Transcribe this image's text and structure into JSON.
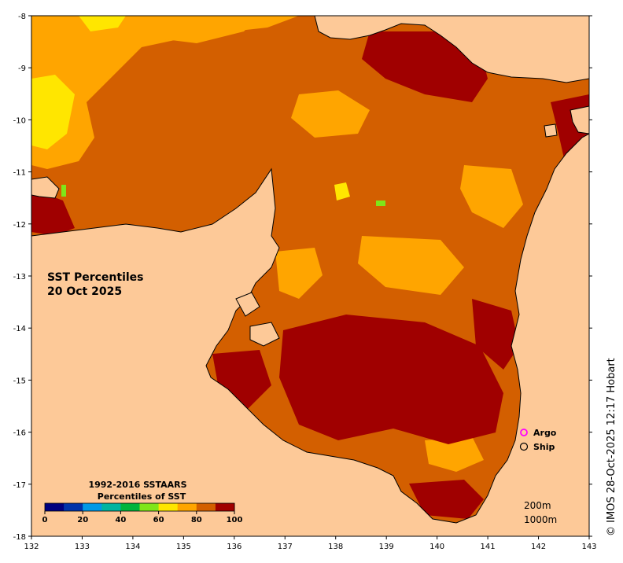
{
  "map": {
    "title_line1": "SST Percentiles",
    "title_line2": "20 Oct 2025",
    "lon_ticks": [
      "132",
      "133",
      "134",
      "135",
      "136",
      "137",
      "138",
      "139",
      "140",
      "141",
      "142",
      "143"
    ],
    "lat_ticks": [
      "-8",
      "-9",
      "-10",
      "-11",
      "-12",
      "-13",
      "-14",
      "-15",
      "-16",
      "-17",
      "-18"
    ],
    "lon_range": [
      132,
      143
    ],
    "lat_range": [
      -18,
      -8
    ],
    "credit": "© IMOS 28-Oct-2025 12:17 Hobart"
  },
  "legend": {
    "argo_label": "Argo",
    "ship_label": "Ship",
    "argo_color": "#ff00ff",
    "ship_color": "#000000"
  },
  "colorbar": {
    "title_line1": "1992-2016 SSTAARS",
    "title_line2": "Percentiles of SST",
    "ticks": [
      "0",
      "20",
      "40",
      "60",
      "80",
      "100"
    ],
    "colors": [
      "#00007f",
      "#0033aa",
      "#0099e6",
      "#00b4a0",
      "#00b43c",
      "#7fe619",
      "#ffe600",
      "#ffa500",
      "#d35f00",
      "#a00000"
    ]
  },
  "depth": {
    "contour_200": "200m",
    "contour_1000": "1000m"
  },
  "colors": {
    "land": "#fdc998",
    "ocean_base": "#d35f00",
    "hot": "#a00000",
    "warm": "#ffa500",
    "yellow": "#ffe600",
    "green": "#7fe619"
  }
}
